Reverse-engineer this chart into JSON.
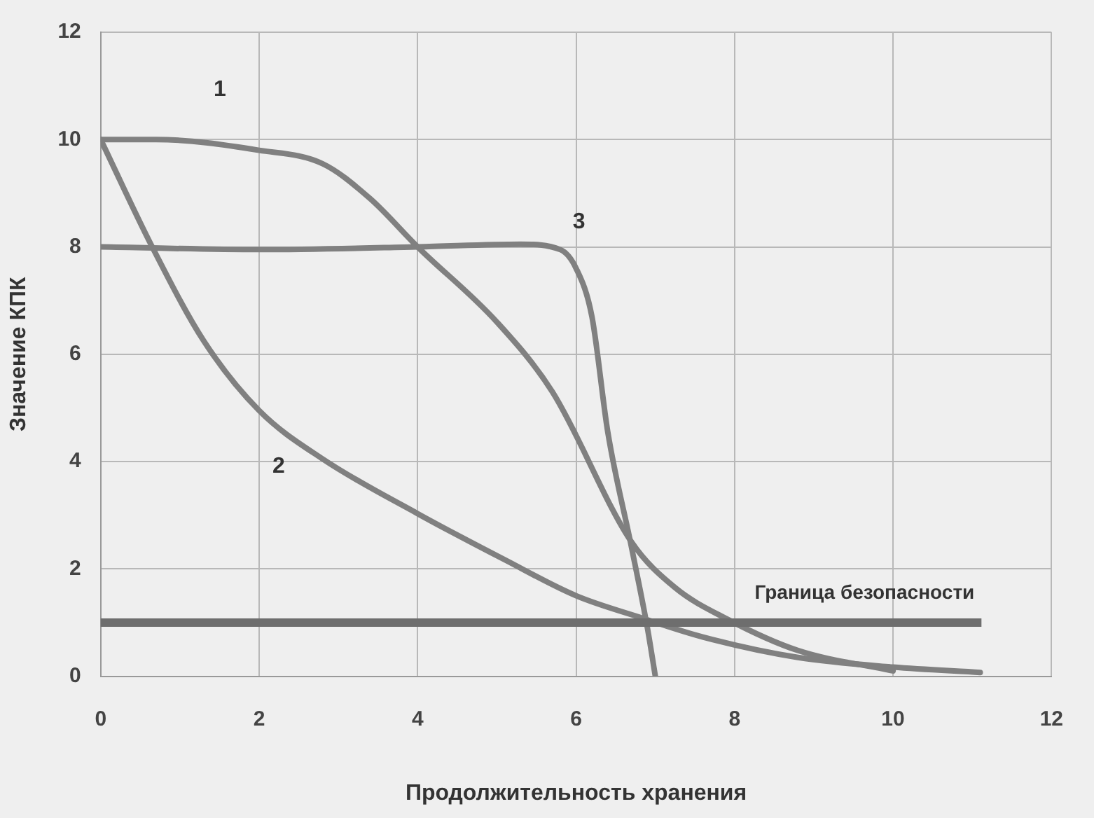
{
  "chart_data": {
    "type": "line",
    "xlabel": "Продолжительность хранения",
    "ylabel": "Значение КПК",
    "xlim": [
      0,
      12
    ],
    "xticks": [
      0,
      2,
      4,
      6,
      8,
      10,
      12
    ],
    "ylim": [
      0,
      12
    ],
    "yticks": [
      0,
      2,
      4,
      6,
      8,
      10,
      12
    ],
    "grid": true,
    "marker": "none",
    "line_style": "solid",
    "series": [
      {
        "name": "1",
        "color": "#808080",
        "x": [
          0,
          0.7,
          2,
          2.8,
          3.4,
          4,
          5,
          5.7,
          6.7,
          7.25,
          7.9,
          8.8,
          10
        ],
        "values": [
          10,
          10,
          9.8,
          9.55,
          8.9,
          8,
          6.6,
          5.3,
          2.5,
          1.65,
          1.07,
          0.48,
          0.1
        ]
      },
      {
        "name": "2",
        "color": "#808080",
        "x": [
          0,
          0.65,
          1.3,
          2,
          2.8,
          4,
          5.1,
          6,
          6.8,
          7.6,
          8.8,
          10,
          11.1
        ],
        "values": [
          10,
          8,
          6.25,
          4.95,
          4.05,
          3.03,
          2.17,
          1.5,
          1.1,
          0.73,
          0.35,
          0.17,
          0.07
        ]
      },
      {
        "name": "3",
        "color": "#808080",
        "x": [
          0,
          2,
          4,
          5.3,
          5.8,
          6,
          6.2,
          6.4,
          6.7,
          6.9,
          7
        ],
        "values": [
          8,
          7.95,
          8,
          8.05,
          7.95,
          7.6,
          6.7,
          4.55,
          2.4,
          0.9,
          0
        ]
      }
    ],
    "ref_lines": [
      {
        "axis": "y",
        "value": 1,
        "label": "Граница безопасности",
        "color": "#6e6e6e"
      }
    ]
  }
}
